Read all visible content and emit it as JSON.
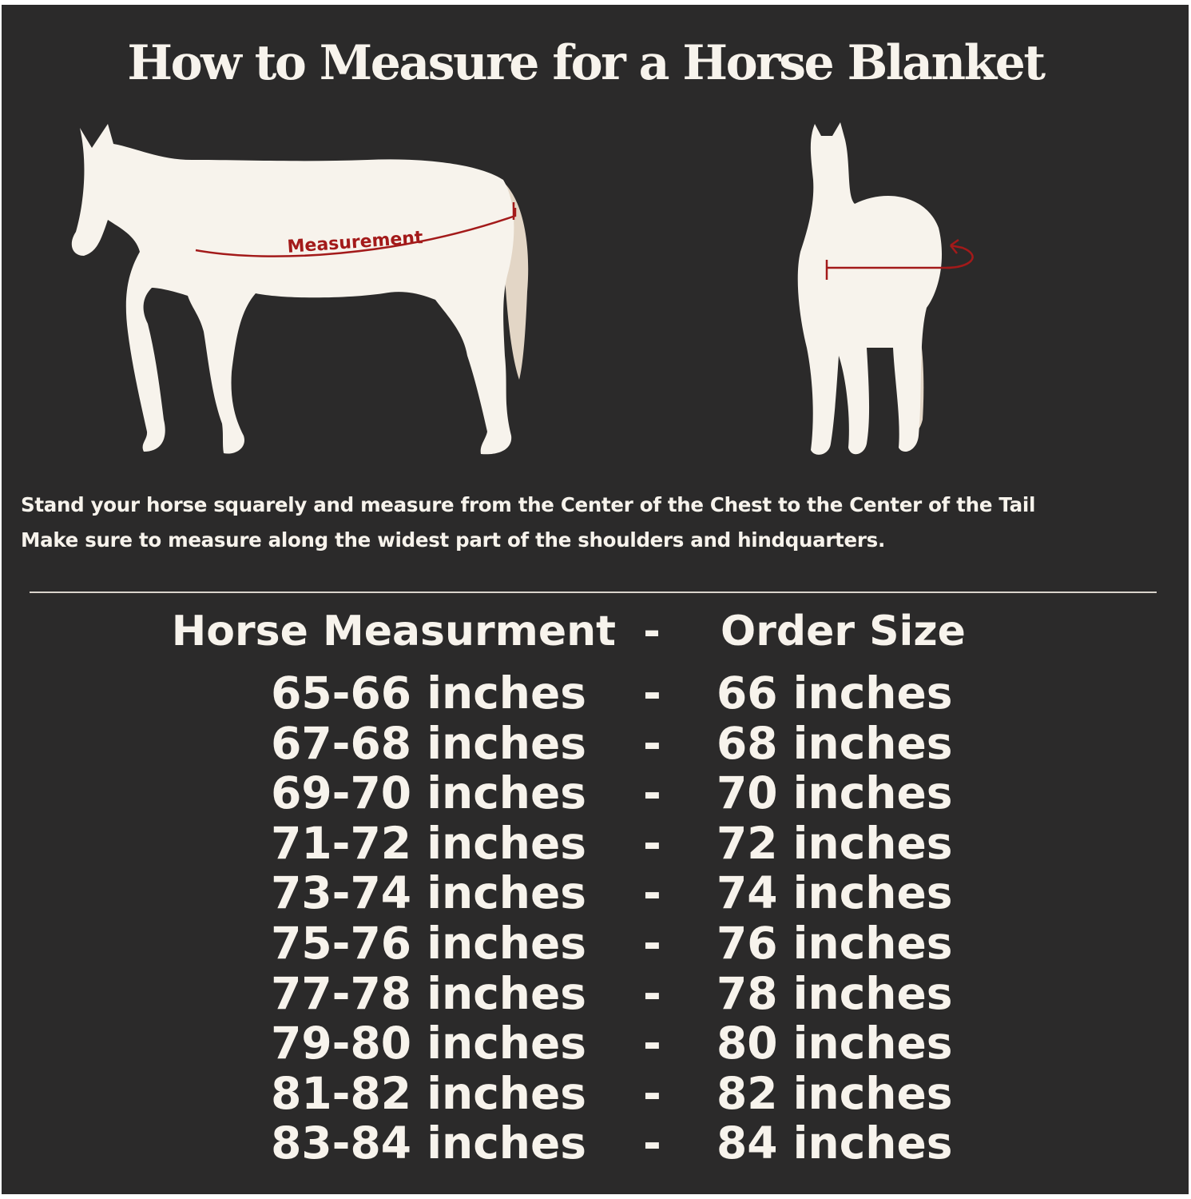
{
  "title": "How to Measure for a Horse Blanket",
  "diagram": {
    "side_label": "Measurement",
    "colors": {
      "background": "#2b2a2a",
      "horse": "#f7f3ec",
      "tail": "#e3d6c6",
      "measure_line": "#a31a1a"
    }
  },
  "instructions": [
    "Stand your horse squarely and measure from the Center of the Chest to the Center of the Tail",
    "Make sure to measure along the widest part of the shoulders and hindquarters."
  ],
  "table": {
    "header": {
      "left": "Horse Measurment",
      "separator": "-",
      "right": "Order Size"
    },
    "rows": [
      {
        "measurement": "65-66 inches",
        "separator": "-",
        "size": "66 inches"
      },
      {
        "measurement": "67-68 inches",
        "separator": "-",
        "size": "68 inches"
      },
      {
        "measurement": "69-70 inches",
        "separator": "-",
        "size": "70 inches"
      },
      {
        "measurement": "71-72 inches",
        "separator": "-",
        "size": "72 inches"
      },
      {
        "measurement": "73-74 inches",
        "separator": "-",
        "size": "74 inches"
      },
      {
        "measurement": "75-76 inches",
        "separator": "-",
        "size": "76 inches"
      },
      {
        "measurement": "77-78 inches",
        "separator": "-",
        "size": "78 inches"
      },
      {
        "measurement": "79-80 inches",
        "separator": "-",
        "size": "80 inches"
      },
      {
        "measurement": "81-82 inches",
        "separator": "-",
        "size": "82 inches"
      },
      {
        "measurement": "83-84 inches",
        "separator": "-",
        "size": "84 inches"
      }
    ]
  }
}
